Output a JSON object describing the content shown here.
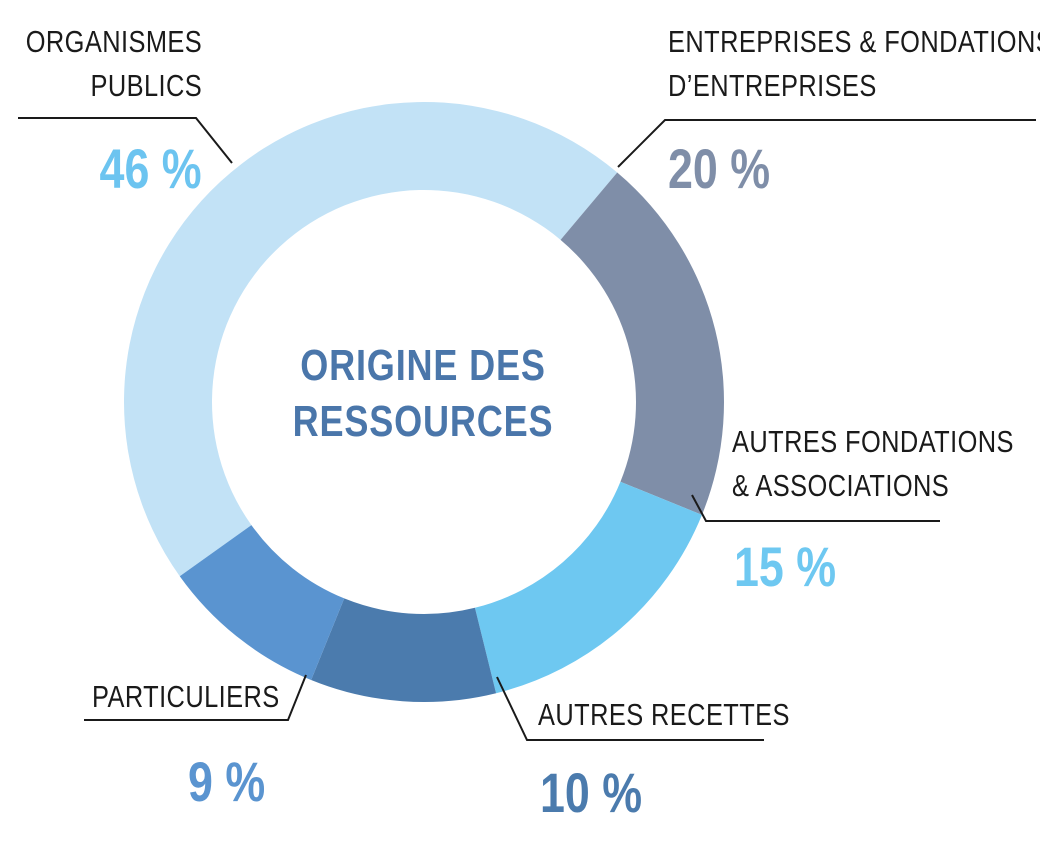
{
  "chart_data": {
    "type": "pie",
    "center_title": [
      "ORIGINE DES",
      "RESSOURCES"
    ],
    "series": [
      {
        "label": [
          "ORGANISMES",
          "PUBLICS"
        ],
        "value": 46,
        "value_label": "46 %",
        "color": "#c2e2f6",
        "text_color": "#6cc4f0"
      },
      {
        "label": [
          "ENTREPRISES & FONDATIONS",
          "D’ENTREPRISES"
        ],
        "value": 20,
        "value_label": "20 %",
        "color": "#7f8ea8",
        "text_color": "#7f8ea8"
      },
      {
        "label": [
          "AUTRES FONDATIONS",
          "& ASSOCIATIONS"
        ],
        "value": 15,
        "value_label": "15 %",
        "color": "#6ec8f1",
        "text_color": "#6ec8f1"
      },
      {
        "label": [
          "AUTRES RECETTES"
        ],
        "value": 10,
        "value_label": "10 %",
        "color": "#4b7bad",
        "text_color": "#4b7bad"
      },
      {
        "label": [
          "PARTICULIERS"
        ],
        "value": 9,
        "value_label": "9 %",
        "color": "#5a94d0",
        "text_color": "#5a94d0"
      }
    ]
  }
}
